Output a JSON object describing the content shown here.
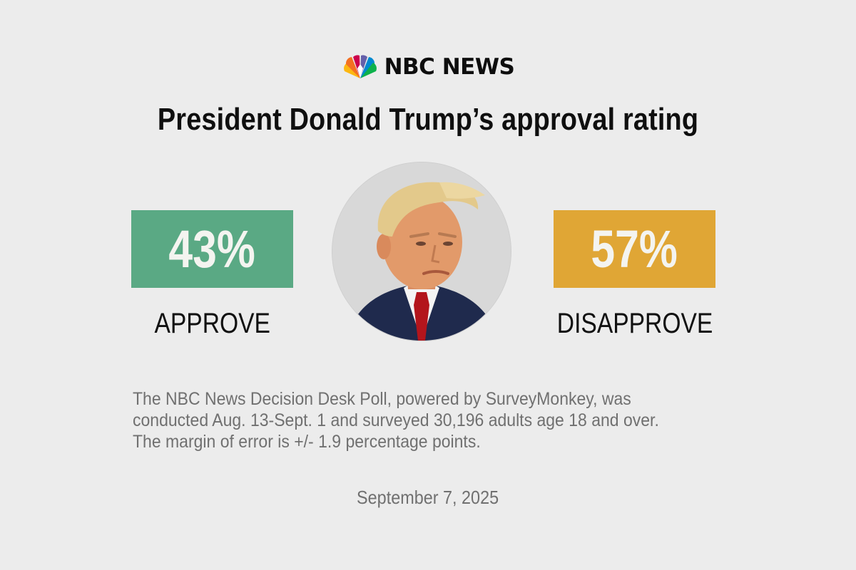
{
  "brand": {
    "name": "NBC NEWS",
    "logo_icon": "nbc-peacock-icon"
  },
  "headline": "President Donald Trump’s approval rating",
  "approve": {
    "value": "43%",
    "label": "APPROVE",
    "color": "#5aa984"
  },
  "disapprove": {
    "value": "57%",
    "label": "DISAPPROVE",
    "color": "#e0a635"
  },
  "footnote": {
    "lines": [
      "The NBC News Decision Desk Poll, powered by SurveyMonkey, was",
      "conducted Aug. 13-Sept. 1 and surveyed 30,196 adults age 18 and over.",
      "The margin of error is +/- 1.9 percentage points."
    ]
  },
  "date": "September 7, 2025",
  "colors": {
    "background": "#ececec",
    "headline": "#0f0f0f",
    "footnote": "#707070"
  }
}
